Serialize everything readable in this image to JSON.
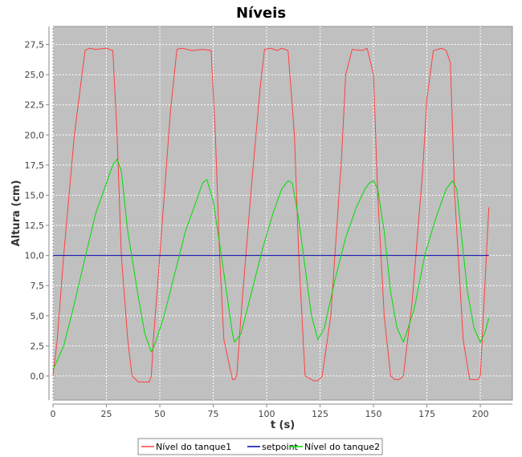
{
  "chart_data": {
    "type": "line",
    "title": "Níveis",
    "xlabel": "t (s)",
    "ylabel": "Altura (cm)",
    "xlim": [
      0,
      215
    ],
    "ylim": [
      -2.0,
      29.0
    ],
    "xticks": [
      0,
      25,
      50,
      75,
      100,
      125,
      150,
      175,
      200
    ],
    "xtick_labels": [
      "0",
      "25",
      "50",
      "75",
      "100",
      "125",
      "150",
      "175",
      "200"
    ],
    "yticks": [
      0,
      2.5,
      5,
      7.5,
      10,
      12.5,
      15,
      17.5,
      20,
      22.5,
      25,
      27.5
    ],
    "ytick_labels": [
      "0,0",
      "2,5",
      "5,0",
      "7,5",
      "10,0",
      "12,5",
      "15,0",
      "17,5",
      "20,0",
      "22,5",
      "25,0",
      "27,5"
    ],
    "grid": true,
    "legend_position": "bottom",
    "plot_background": "#c0c0c0",
    "series": [
      {
        "name": "Nível do tanque1",
        "color": "#ff4040",
        "x": [
          0,
          2,
          5,
          10,
          15,
          17,
          20,
          25,
          28,
          30,
          32,
          35,
          37,
          40,
          42,
          45,
          46,
          47,
          50,
          55,
          58,
          60,
          63,
          65,
          70,
          74,
          76,
          78,
          80,
          84,
          85,
          86,
          88,
          93,
          97,
          99,
          102,
          105,
          107,
          110,
          113,
          115,
          118,
          122,
          124,
          126,
          130,
          135,
          137,
          140,
          145,
          147,
          150,
          152,
          155,
          158,
          160,
          162,
          164,
          168,
          173,
          175,
          178,
          182,
          184,
          186,
          188,
          192,
          195,
          199,
          200,
          202,
          204
        ],
        "y": [
          0,
          3,
          10,
          20,
          27,
          27.2,
          27.1,
          27.2,
          27.0,
          20,
          10,
          3,
          0,
          -0.5,
          -0.5,
          -0.5,
          0,
          3,
          10,
          22,
          27.1,
          27.2,
          27.1,
          27.0,
          27.1,
          27.0,
          20,
          10,
          3,
          -0.3,
          -0.3,
          0,
          5,
          16,
          24,
          27.1,
          27.2,
          27.0,
          27.2,
          27.0,
          20,
          10,
          0,
          -0.4,
          -0.4,
          0,
          5,
          18,
          25,
          27.1,
          27.0,
          27.2,
          25,
          15,
          5,
          0,
          -0.3,
          -0.3,
          0,
          6,
          17,
          23,
          27.0,
          27.2,
          27.0,
          26,
          15,
          3,
          -0.3,
          -0.3,
          0,
          7,
          14
        ]
      },
      {
        "name": "setpoint",
        "color": "#0000b0",
        "x": [
          0,
          204
        ],
        "y": [
          10,
          10
        ]
      },
      {
        "name": "Nível do tanque2",
        "color": "#00dd00",
        "x": [
          0,
          5,
          10,
          15,
          20,
          25,
          28,
          30,
          32,
          35,
          40,
          43,
          45,
          46,
          48,
          52,
          57,
          62,
          67,
          70,
          72,
          75,
          78,
          82,
          84,
          85,
          88,
          93,
          98,
          103,
          107,
          110,
          112,
          115,
          118,
          121,
          124,
          127,
          132,
          137,
          142,
          146,
          148,
          150,
          152,
          155,
          158,
          161,
          164,
          169,
          174,
          179,
          184,
          187,
          189,
          191,
          194,
          197,
          200,
          202,
          204
        ],
        "y": [
          0.5,
          2.5,
          6.0,
          9.8,
          13.5,
          16.0,
          17.5,
          18.0,
          17.0,
          12.0,
          6.5,
          3.5,
          2.5,
          2.0,
          2.8,
          5.0,
          8.5,
          12.0,
          14.5,
          16.0,
          16.3,
          14.5,
          11.0,
          6.0,
          3.5,
          2.8,
          3.5,
          7.0,
          10.5,
          13.5,
          15.5,
          16.2,
          16.0,
          13.0,
          9.0,
          5.0,
          3.0,
          4.0,
          8.0,
          11.5,
          14.0,
          15.5,
          16.0,
          16.2,
          15.5,
          12.0,
          7.0,
          4.0,
          2.8,
          5.5,
          10.0,
          13.0,
          15.5,
          16.2,
          15.5,
          12.0,
          7.0,
          4.0,
          2.8,
          3.5,
          4.8
        ]
      }
    ]
  }
}
